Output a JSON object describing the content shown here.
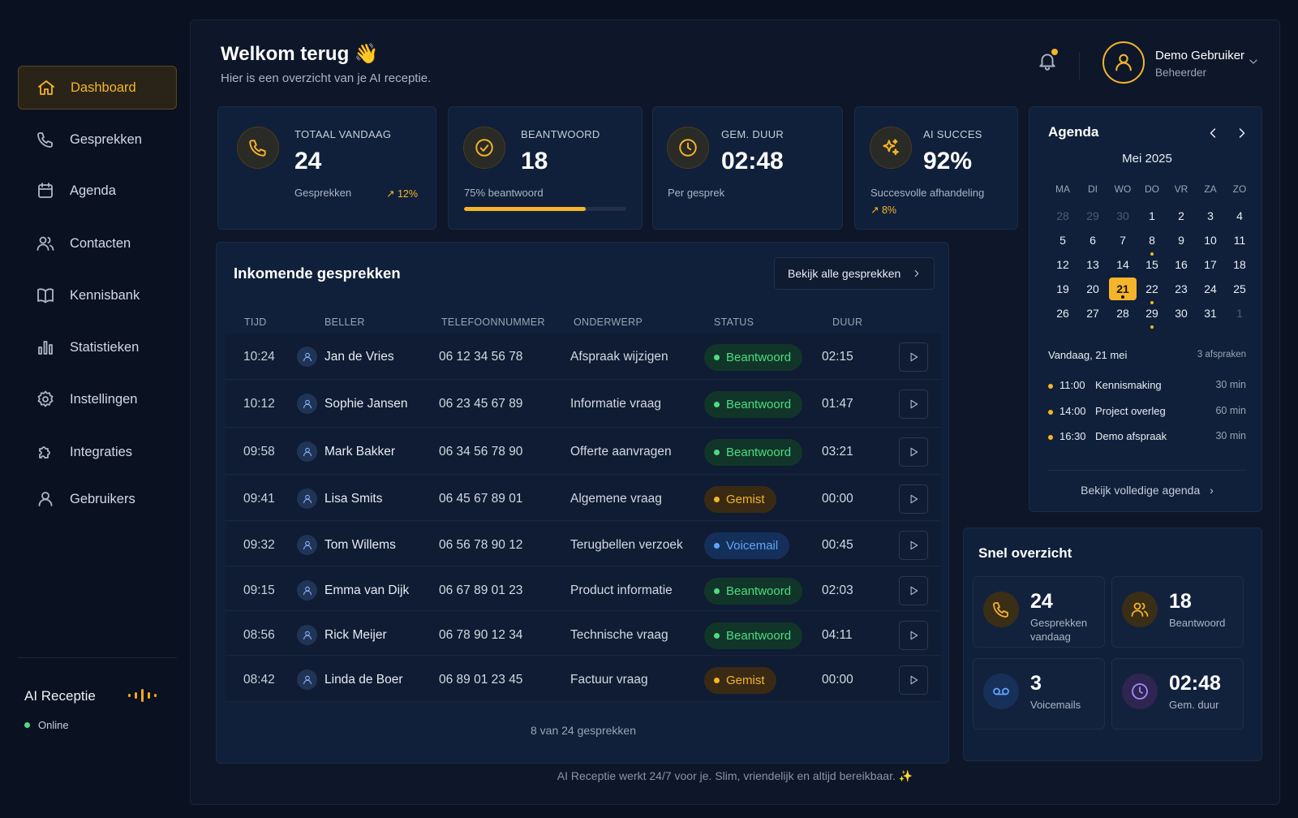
{
  "sidebar": {
    "items": [
      {
        "label": "Dashboard",
        "icon": "home-icon",
        "active": true
      },
      {
        "label": "Gesprekken",
        "icon": "phone-icon"
      },
      {
        "label": "Agenda",
        "icon": "calendar-icon"
      },
      {
        "label": "Contacten",
        "icon": "users-icon"
      },
      {
        "label": "Kennisbank",
        "icon": "book-icon"
      },
      {
        "label": "Statistieken",
        "icon": "bar-chart-icon"
      },
      {
        "label": "Instellingen",
        "icon": "gear-icon"
      },
      {
        "label": "Integraties",
        "icon": "puzzle-icon"
      },
      {
        "label": "Gebruikers",
        "icon": "user-icon"
      }
    ],
    "ai_title": "AI Receptie",
    "status": "Online"
  },
  "header": {
    "title": "Welkom terug",
    "wave": "👋",
    "subtitle": "Hier is een overzicht van je AI receptie.",
    "user_name": "Demo Gebruiker",
    "user_role": "Beheerder"
  },
  "stats": [
    {
      "label": "TOTAAL VANDAAG",
      "value": "24",
      "sub": "Gesprekken",
      "trend": "12%"
    },
    {
      "label": "BEANTWOORD",
      "value": "18",
      "sub": "75% beantwoord",
      "progress": 0.75
    },
    {
      "label": "GEM. DUUR",
      "value": "02:48",
      "sub": "Per gesprek"
    },
    {
      "label": "AI SUCCES",
      "value": "92%",
      "sub": "Succesvolle afhandeling",
      "trend": "8%"
    }
  ],
  "calls": {
    "title": "Inkomende gesprekken",
    "view_all": "Bekijk alle gesprekken",
    "columns": [
      "TIJD",
      "BELLER",
      "TELEFOONNUMMER",
      "ONDERWERP",
      "STATUS",
      "DUUR"
    ],
    "rows": [
      {
        "time": "10:24",
        "caller": "Jan de Vries",
        "phone": "06 12 34 56 78",
        "subject": "Afspraak wijzigen",
        "status": "Beantwoord",
        "status_type": "green",
        "duration": "02:15"
      },
      {
        "time": "10:12",
        "caller": "Sophie Jansen",
        "phone": "06 23 45 67 89",
        "subject": "Informatie vraag",
        "status": "Beantwoord",
        "status_type": "green",
        "duration": "01:47"
      },
      {
        "time": "09:58",
        "caller": "Mark Bakker",
        "phone": "06 34 56 78 90",
        "subject": "Offerte aanvragen",
        "status": "Beantwoord",
        "status_type": "green",
        "duration": "03:21"
      },
      {
        "time": "09:41",
        "caller": "Lisa Smits",
        "phone": "06 45 67 89 01",
        "subject": "Algemene vraag",
        "status": "Gemist",
        "status_type": "orange",
        "duration": "00:00"
      },
      {
        "time": "09:32",
        "caller": "Tom Willems",
        "phone": "06 56 78 90 12",
        "subject": "Terugbellen verzoek",
        "status": "Voicemail",
        "status_type": "blue",
        "duration": "00:45"
      },
      {
        "time": "09:15",
        "caller": "Emma van Dijk",
        "phone": "06 67 89 01 23",
        "subject": "Product informatie",
        "status": "Beantwoord",
        "status_type": "green",
        "duration": "02:03"
      },
      {
        "time": "08:56",
        "caller": "Rick Meijer",
        "phone": "06 78 90 12 34",
        "subject": "Technische vraag",
        "status": "Beantwoord",
        "status_type": "green",
        "duration": "04:11"
      },
      {
        "time": "08:42",
        "caller": "Linda de Boer",
        "phone": "06 89 01 23 45",
        "subject": "Factuur vraag",
        "status": "Gemist",
        "status_type": "orange",
        "duration": "00:00"
      }
    ],
    "footer": "8 van 24 gesprekken"
  },
  "agenda": {
    "title": "Agenda",
    "month": "Mei 2025",
    "weekdays": [
      "MA",
      "DI",
      "WO",
      "DO",
      "VR",
      "ZA",
      "ZO"
    ],
    "weeks": [
      [
        "28",
        "29",
        "30",
        "1",
        "2",
        "3",
        "4"
      ],
      [
        "5",
        "6",
        "7",
        "8",
        "9",
        "10",
        "11"
      ],
      [
        "12",
        "13",
        "14",
        "15",
        "16",
        "17",
        "18"
      ],
      [
        "19",
        "20",
        "21",
        "22",
        "23",
        "24",
        "25"
      ],
      [
        "26",
        "27",
        "28",
        "29",
        "30",
        "31",
        "1"
      ]
    ],
    "muted_days": [
      [
        0,
        0
      ],
      [
        0,
        1
      ],
      [
        0,
        2
      ],
      [
        4,
        6
      ]
    ],
    "event_days": [
      [
        1,
        3
      ],
      [
        3,
        2
      ],
      [
        3,
        3
      ],
      [
        4,
        3
      ]
    ],
    "today_cell": [
      3,
      2
    ],
    "today_label": "Vandaag, 21 mei",
    "count_label": "3 afspraken",
    "appointments": [
      {
        "time": "11:00",
        "title": "Kennismaking",
        "duration": "30 min"
      },
      {
        "time": "14:00",
        "title": "Project overleg",
        "duration": "60 min"
      },
      {
        "time": "16:30",
        "title": "Demo afspraak",
        "duration": "30 min"
      }
    ],
    "full_link": "Bekijk volledige agenda"
  },
  "quick": {
    "title": "Snel overzicht",
    "tiles": [
      {
        "value": "24",
        "label": "Gesprekken vandaag",
        "icon": "phone-icon",
        "color": "#f5b42a"
      },
      {
        "value": "18",
        "label": "Beantwoord",
        "icon": "users-icon",
        "color": "#f5b42a"
      },
      {
        "value": "3",
        "label": "Voicemails",
        "icon": "voicemail-icon",
        "color": "#60a5fa"
      },
      {
        "value": "02:48",
        "label": "Gem. duur",
        "icon": "clock-icon",
        "color": "#a78bfa"
      }
    ]
  },
  "footer": {
    "text": "AI Receptie werkt 24/7 voor je. Slim, vriendelijk en altijd bereikbaar.",
    "sparkle": "✨"
  },
  "colors": {
    "accent": "#f5b42a",
    "bg": "#0a1120",
    "panel": "#0d1729",
    "card": "#10203a",
    "green": "#4ade80",
    "blue": "#60a5fa"
  }
}
